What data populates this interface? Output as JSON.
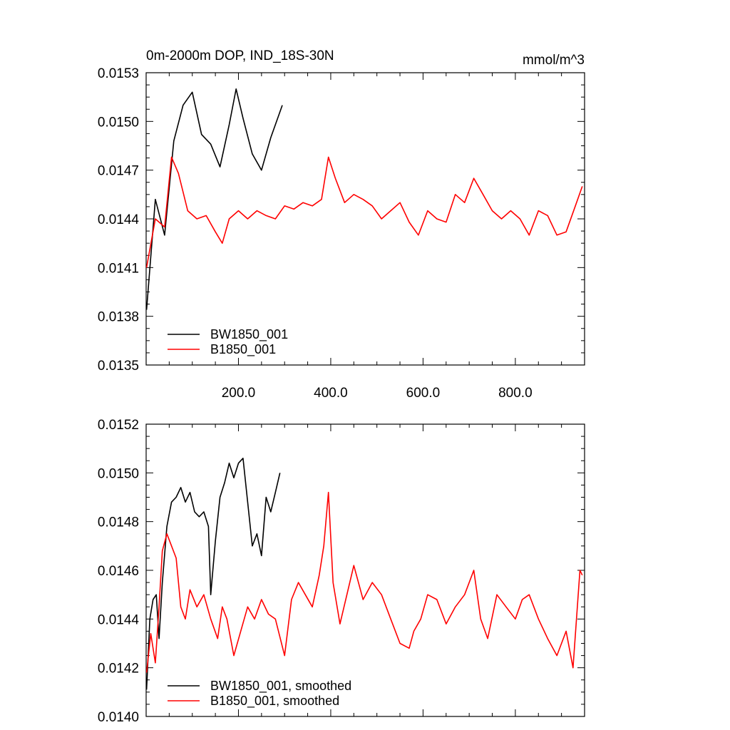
{
  "chart_data": [
    {
      "type": "line",
      "title": "0m-2000m DOP, IND_18S-30N",
      "units": "mmol/m^3",
      "xlim": [
        0,
        950
      ],
      "ylim": [
        0.0135,
        0.0153
      ],
      "xticks": [
        200,
        400,
        600,
        800
      ],
      "xtick_labels": [
        "200.0",
        "400.0",
        "600.0",
        "800.0"
      ],
      "yticks": [
        0.0135,
        0.0138,
        0.0141,
        0.0144,
        0.0147,
        0.015,
        0.0153
      ],
      "ytick_labels": [
        "0.0135",
        "0.0138",
        "0.0141",
        "0.0144",
        "0.0147",
        "0.0150",
        "0.0153"
      ],
      "legend_position": "bottom-left",
      "series": [
        {
          "name": "BW1850_001",
          "color": "#000000",
          "x": [
            1,
            20,
            40,
            60,
            80,
            100,
            120,
            140,
            160,
            180,
            195,
            210,
            230,
            250,
            270,
            295
          ],
          "values": [
            0.01384,
            0.01452,
            0.0143,
            0.01488,
            0.0151,
            0.01518,
            0.01492,
            0.01486,
            0.01472,
            0.01498,
            0.0152,
            0.01502,
            0.0148,
            0.0147,
            0.0149,
            0.0151
          ]
        },
        {
          "name": "B1850_001",
          "color": "#ff0000",
          "x": [
            1,
            20,
            40,
            55,
            70,
            90,
            110,
            130,
            150,
            165,
            180,
            200,
            220,
            240,
            260,
            280,
            300,
            320,
            340,
            360,
            380,
            395,
            410,
            430,
            450,
            470,
            490,
            510,
            530,
            550,
            570,
            590,
            610,
            630,
            650,
            670,
            690,
            710,
            730,
            750,
            770,
            790,
            810,
            830,
            850,
            870,
            890,
            910,
            930,
            945
          ],
          "values": [
            0.0141,
            0.0144,
            0.01435,
            0.01478,
            0.01468,
            0.01445,
            0.0144,
            0.01442,
            0.01432,
            0.01425,
            0.0144,
            0.01445,
            0.0144,
            0.01445,
            0.01442,
            0.0144,
            0.01448,
            0.01446,
            0.0145,
            0.01448,
            0.01452,
            0.01478,
            0.01465,
            0.0145,
            0.01455,
            0.01452,
            0.01448,
            0.0144,
            0.01445,
            0.0145,
            0.01438,
            0.0143,
            0.01445,
            0.0144,
            0.01438,
            0.01455,
            0.0145,
            0.01465,
            0.01455,
            0.01445,
            0.0144,
            0.01445,
            0.0144,
            0.0143,
            0.01445,
            0.01442,
            0.0143,
            0.01432,
            0.01448,
            0.0146
          ]
        }
      ]
    },
    {
      "type": "line",
      "xlim": [
        0,
        950
      ],
      "ylim": [
        0.014,
        0.0152
      ],
      "yticks": [
        0.014,
        0.0142,
        0.0144,
        0.0146,
        0.0148,
        0.015,
        0.0152
      ],
      "ytick_labels": [
        "0.0140",
        "0.0142",
        "0.0144",
        "0.0146",
        "0.0148",
        "0.0150",
        "0.0152"
      ],
      "legend_position": "bottom-left",
      "series": [
        {
          "name": "BW1850_001, smoothed",
          "color": "#000000",
          "x": [
            1,
            8,
            15,
            22,
            28,
            35,
            45,
            55,
            65,
            75,
            85,
            95,
            105,
            115,
            125,
            135,
            140,
            150,
            160,
            170,
            180,
            190,
            200,
            210,
            220,
            230,
            240,
            250,
            260,
            270,
            280,
            290
          ],
          "values": [
            0.01411,
            0.0144,
            0.01448,
            0.0145,
            0.01432,
            0.01455,
            0.01478,
            0.01488,
            0.0149,
            0.01494,
            0.01488,
            0.01492,
            0.01484,
            0.01482,
            0.01484,
            0.01478,
            0.0145,
            0.01472,
            0.0149,
            0.01496,
            0.01504,
            0.01498,
            0.01504,
            0.01506,
            0.01488,
            0.0147,
            0.01475,
            0.01466,
            0.0149,
            0.01484,
            0.01492,
            0.015
          ]
        },
        {
          "name": "B1850_001, smoothed",
          "color": "#ff0000",
          "x": [
            1,
            10,
            20,
            28,
            35,
            45,
            55,
            65,
            75,
            85,
            95,
            110,
            125,
            140,
            155,
            165,
            175,
            190,
            205,
            220,
            235,
            250,
            265,
            280,
            300,
            315,
            330,
            345,
            360,
            375,
            385,
            395,
            405,
            420,
            435,
            450,
            470,
            490,
            510,
            530,
            550,
            570,
            580,
            595,
            610,
            630,
            650,
            670,
            690,
            710,
            725,
            740,
            760,
            780,
            800,
            815,
            830,
            850,
            870,
            890,
            910,
            925,
            940,
            945
          ],
          "values": [
            0.01418,
            0.01434,
            0.01422,
            0.01445,
            0.01468,
            0.01475,
            0.0147,
            0.01465,
            0.01445,
            0.0144,
            0.01452,
            0.01445,
            0.0145,
            0.0144,
            0.01432,
            0.01445,
            0.0144,
            0.01425,
            0.01435,
            0.01445,
            0.0144,
            0.01448,
            0.01442,
            0.0144,
            0.01425,
            0.01448,
            0.01455,
            0.0145,
            0.01445,
            0.01458,
            0.0147,
            0.01492,
            0.01455,
            0.01438,
            0.0145,
            0.01462,
            0.01448,
            0.01455,
            0.0145,
            0.0144,
            0.0143,
            0.01428,
            0.01435,
            0.0144,
            0.0145,
            0.01448,
            0.01438,
            0.01445,
            0.0145,
            0.0146,
            0.0144,
            0.01432,
            0.0145,
            0.01445,
            0.0144,
            0.01448,
            0.0145,
            0.0144,
            0.01432,
            0.01425,
            0.01435,
            0.0142,
            0.0146,
            0.01458
          ]
        }
      ]
    }
  ]
}
